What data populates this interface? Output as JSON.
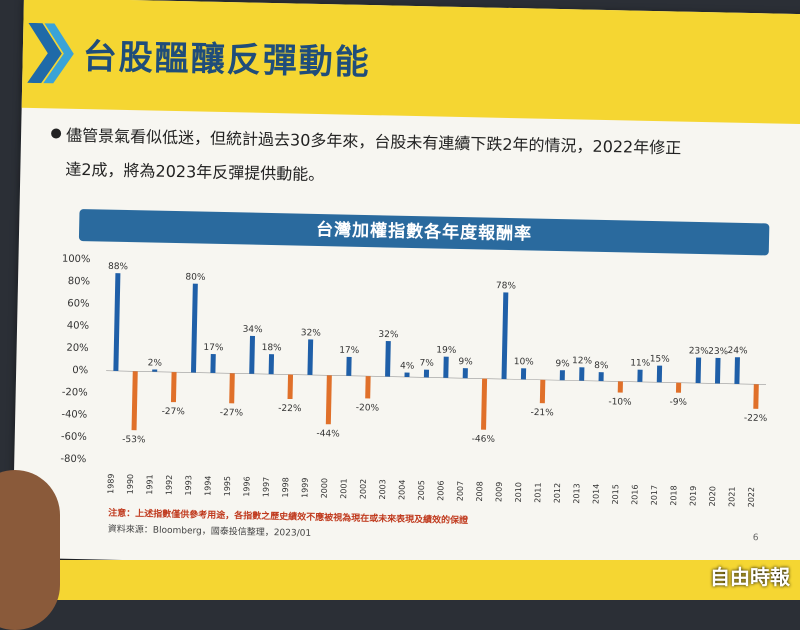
{
  "header": {
    "title": "台股醞釀反彈動能"
  },
  "body": {
    "line1": "儘管景氣看似低迷，但統計過去30多年來，台股未有連續下跌2年的情況，2022年修正",
    "line2": "達2成，將為2023年反彈提供動能。"
  },
  "chart_data": {
    "type": "bar",
    "title": "台灣加權指數各年度報酬率",
    "categories": [
      "1989",
      "1990",
      "1991",
      "1992",
      "1993",
      "1994",
      "1995",
      "1996",
      "1997",
      "1998",
      "1999",
      "2000",
      "2001",
      "2002",
      "2003",
      "2004",
      "2005",
      "2006",
      "2007",
      "2008",
      "2009",
      "2010",
      "2011",
      "2012",
      "2013",
      "2014",
      "2015",
      "2016",
      "2017",
      "2018",
      "2019",
      "2020",
      "2021",
      "2022"
    ],
    "values": [
      88,
      -53,
      2,
      -27,
      80,
      17,
      -27,
      34,
      18,
      -22,
      32,
      -44,
      17,
      -20,
      32,
      4,
      7,
      19,
      9,
      -46,
      78,
      10,
      -21,
      9,
      12,
      8,
      -10,
      11,
      15,
      -9,
      23,
      23,
      24,
      -22
    ],
    "value_labels": [
      "88%",
      "-53%",
      "2%",
      "-27%",
      "80%",
      "17%",
      "-27%",
      "34%",
      "18%",
      "-22%",
      "32%",
      "-44%",
      "17%",
      "-20%",
      "32%",
      "4%",
      "7%",
      "19%",
      "9%",
      "-46%",
      "78%",
      "10%",
      "-21%",
      "9%",
      "12%",
      "8%",
      "-10%",
      "11%",
      "15%",
      "-9%",
      "23%",
      "23%",
      "24%",
      "-22%"
    ],
    "y_ticks": [
      "100%",
      "80%",
      "60%",
      "40%",
      "20%",
      "0%",
      "-20%",
      "-40%",
      "-60%",
      "-80%"
    ],
    "ylim": [
      -80,
      100
    ],
    "positive_color": "#1f5fa8",
    "negative_color": "#e0702a",
    "grid": false
  },
  "footer": {
    "note": "注意：上述指數僅供參考用途，各指數之歷史績效不應被視為現在或未來表現及績效的保證",
    "source": "資料來源：Bloomberg，國泰投信整理，2023/01",
    "page": "6"
  },
  "watermark": "自由時報"
}
